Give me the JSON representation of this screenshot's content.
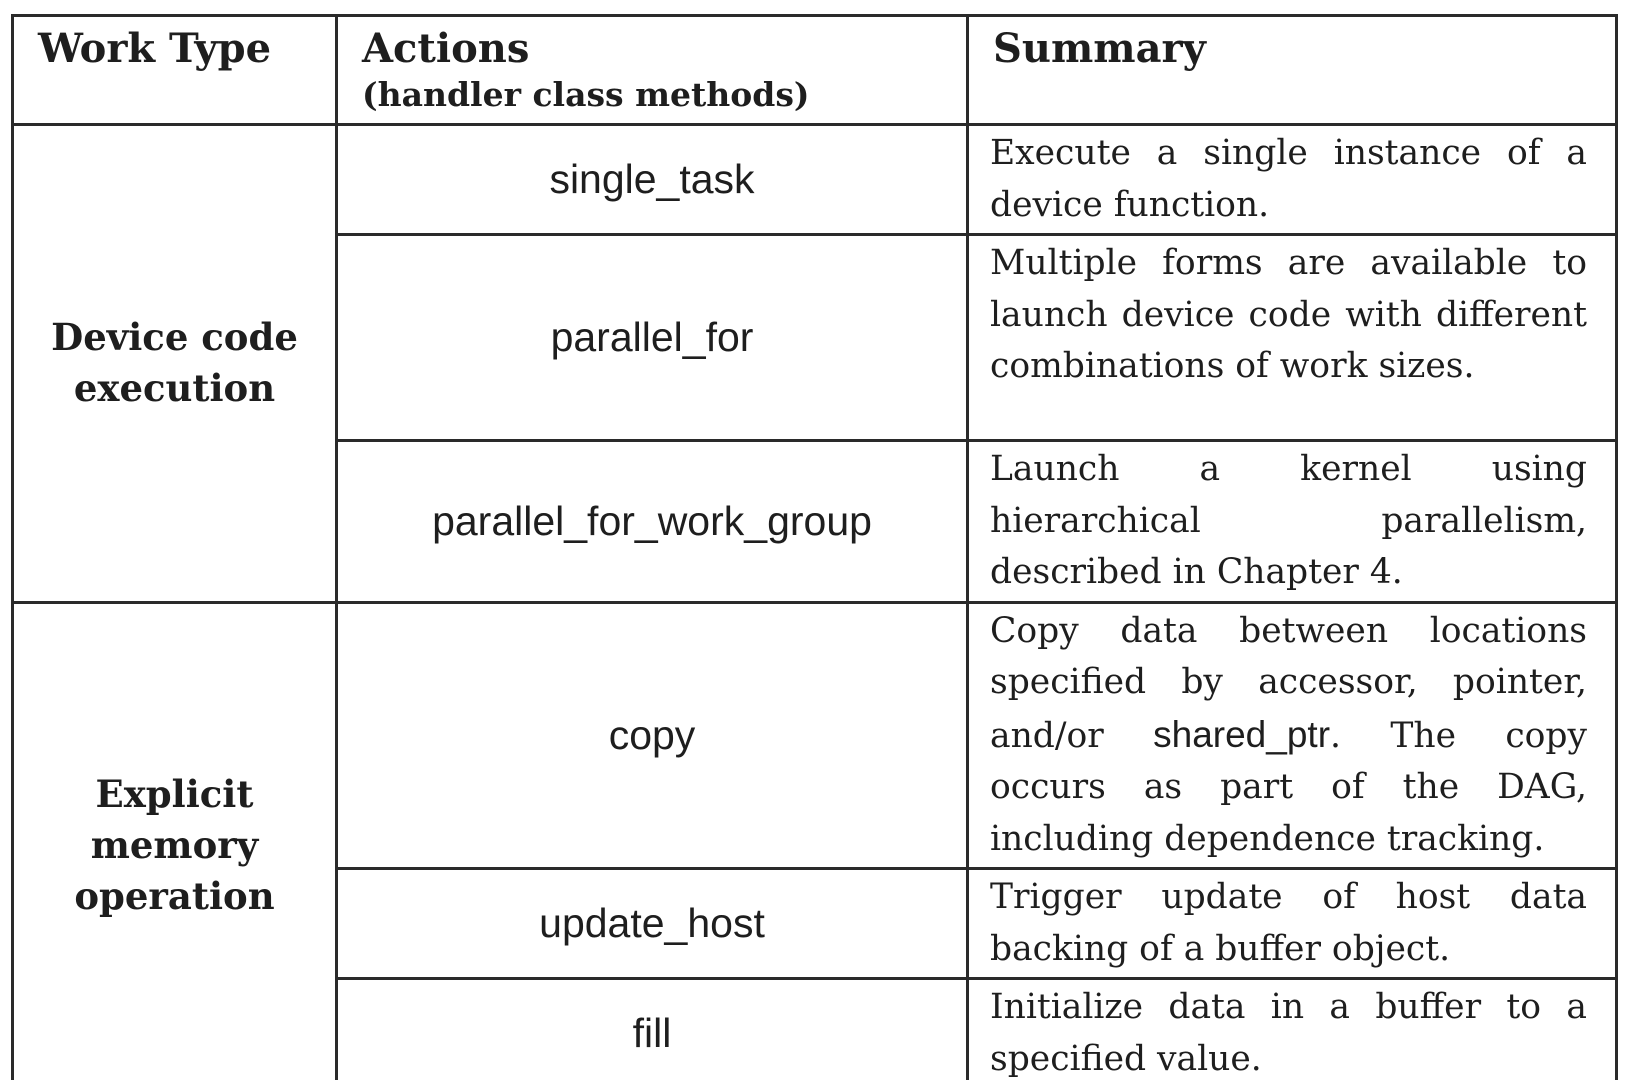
{
  "table": {
    "headers": {
      "work_type": "Work Type",
      "actions": "Actions",
      "actions_sub": "(handler class methods)",
      "summary": "Summary"
    },
    "groups": [
      {
        "work_type": "Device code execution",
        "rows": [
          {
            "action": "single_task",
            "summary": "Execute a single instance of a device function."
          },
          {
            "action": "parallel_for",
            "summary": "Multiple forms are available to launch device code with different combinations of work sizes."
          },
          {
            "action": "parallel_for_work_group",
            "summary": "Launch a kernel using hierarchical parallelism, described in Chapter 4."
          }
        ]
      },
      {
        "work_type": "Explicit memory operation",
        "rows": [
          {
            "action": "copy",
            "summary_pre": "Copy data between locations specified by accessor, pointer, and/or",
            "summary_code": "shared_ptr",
            "summary_post": ".  The copy occurs as part of the DAG, including dependence tracking."
          },
          {
            "action": "update_host",
            "summary": "Trigger update of host data backing of a buffer object."
          },
          {
            "action": "fill",
            "summary": "Initialize data in a buffer to a specified value."
          }
        ]
      }
    ]
  }
}
